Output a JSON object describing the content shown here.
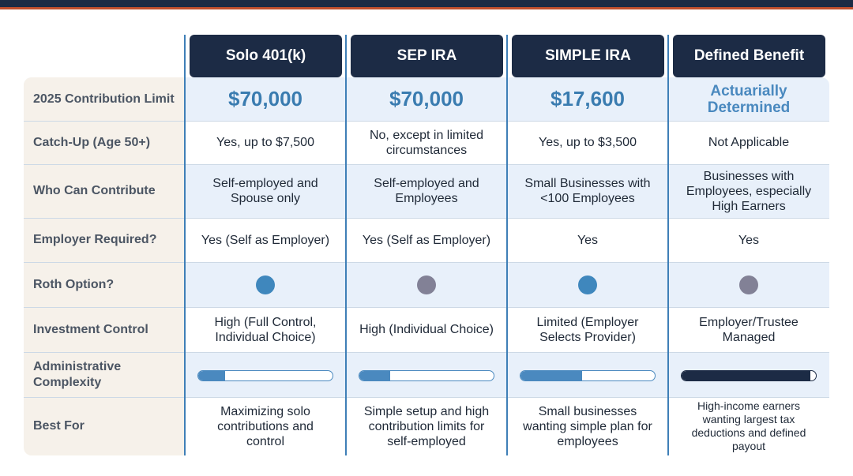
{
  "colors": {
    "header_bg": "#1c2b45",
    "accent_red": "#c1502e",
    "accent_blue": "#3a7cb0",
    "dot_blue": "#3f87bd",
    "dot_gray": "#828196",
    "bar_light": "#4a89bf",
    "bar_dark": "#1c2b45"
  },
  "columns": [
    "Solo 401(k)",
    "SEP IRA",
    "SIMPLE IRA",
    "Defined Benefit"
  ],
  "rows": [
    {
      "label": "2025 Contribution Limit",
      "values": [
        "$70,000",
        "$70,000",
        "$17,600",
        "Actuarially Determined"
      ]
    },
    {
      "label": "Catch-Up (Age 50+)",
      "values": [
        "Yes, up to $7,500",
        "No, except in limited circumstances",
        "Yes, up to $3,500",
        "Not Applicable"
      ]
    },
    {
      "label": "Who Can Contribute",
      "values": [
        "Self-employed and Spouse only",
        "Self-employed and Employees",
        "Small Businesses with <100 Employees",
        "Businesses with Employees, especially High Earners"
      ]
    },
    {
      "label": "Employer Required?",
      "values": [
        "Yes (Self as Employer)",
        "Yes (Self as Employer)",
        "Yes",
        "Yes"
      ]
    },
    {
      "label": "Roth Option?",
      "dots": [
        {
          "icon": "filled-circle-icon",
          "color": "#3f87bd"
        },
        {
          "icon": "filled-circle-icon",
          "color": "#828196"
        },
        {
          "icon": "filled-circle-icon",
          "color": "#3f87bd"
        },
        {
          "icon": "filled-circle-icon",
          "color": "#828196"
        }
      ]
    },
    {
      "label": "Investment Control",
      "values": [
        "High (Full Control, Individual Choice)",
        "High (Individual Choice)",
        "Limited (Employer Selects Provider)",
        "Employer/Trustee Managed"
      ]
    },
    {
      "label": "Administrative Complexity",
      "levels": [
        0.2,
        0.23,
        0.46,
        0.96
      ]
    },
    {
      "label": "Best For",
      "values": [
        "Maximizing solo contributions and control",
        "Simple setup and high contribution limits for self-employed",
        "Small businesses wanting simple plan for employees",
        "High-income earners wanting largest tax deductions and defined payout"
      ]
    }
  ]
}
